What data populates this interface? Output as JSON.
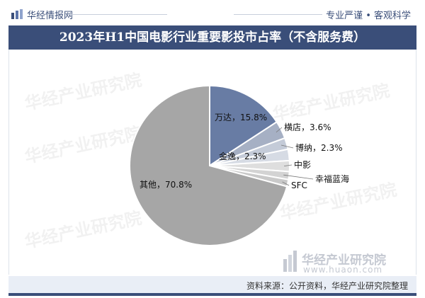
{
  "header": {
    "brand": "华经情报网",
    "slogan": "专业严谨 • 客观科学"
  },
  "title": "2023年H1中国电影行业重要影投市占率（不含服务费）",
  "chart_data": {
    "type": "pie",
    "title": "2023年H1中国电影行业重要影投市占率（不含服务费）",
    "slices": [
      {
        "name": "万达",
        "value": 15.8,
        "label": "万达，15.8%",
        "color": "#687ca4"
      },
      {
        "name": "横店",
        "value": 3.6,
        "label": "横店，3.6%",
        "color": "#a6b0c4"
      },
      {
        "name": "博纳",
        "value": 2.3,
        "label": "博纳，2.3%",
        "color": "#c4cbd8"
      },
      {
        "name": "金逸",
        "value": 2.3,
        "label": "金逸，2.3%",
        "color": "#d6dbe4"
      },
      {
        "name": "中影",
        "value": 2.2,
        "label": "中影",
        "color": "#dedede"
      },
      {
        "name": "幸福蓝海",
        "value": 1.6,
        "label": "幸福蓝海",
        "color": "#d3d3d3"
      },
      {
        "name": "SFC",
        "value": 1.4,
        "label": "SFC",
        "color": "#c9c9c9"
      },
      {
        "name": "其他",
        "value": 70.8,
        "label": "其他，70.8%",
        "color": "#a6a6a6"
      }
    ],
    "start_angle_deg": 0,
    "direction": "clockwise",
    "legend": "none"
  },
  "footer": {
    "source": "资料来源：公开资料，华经产业研究院整理"
  },
  "watermark": {
    "text": "华经产业研究院",
    "url": "www.huaon.com"
  }
}
